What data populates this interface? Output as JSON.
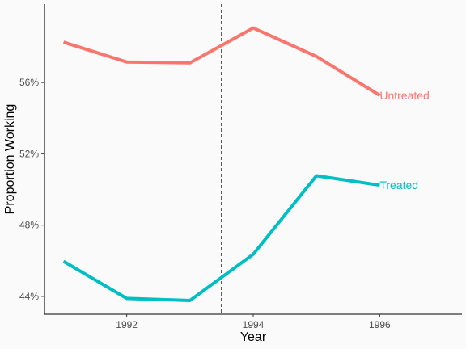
{
  "chart_data": {
    "type": "line",
    "title": "",
    "xlabel": "Year",
    "ylabel": "Proportion Working",
    "xlim": [
      1990.7,
      1997.3
    ],
    "ylim": [
      0.43,
      0.604
    ],
    "x_ticks": [
      1992,
      1994,
      1996
    ],
    "x_tick_labels": [
      "1992",
      "1994",
      "1996"
    ],
    "y_ticks": [
      0.44,
      0.48,
      0.52,
      0.56
    ],
    "y_tick_labels": [
      "44%",
      "48%",
      "52%",
      "56%"
    ],
    "grid": false,
    "legend": "none",
    "reference_line": {
      "x": 1993.5,
      "style": "dashed"
    },
    "series": [
      {
        "name": "Untreated",
        "color": "#F8766D",
        "x": [
          1991,
          1992,
          1993,
          1994,
          1995,
          1996
        ],
        "values": [
          0.5826,
          0.5715,
          0.571,
          0.5906,
          0.5746,
          0.5528
        ]
      },
      {
        "name": "Treated",
        "color": "#00BFC4",
        "x": [
          1991,
          1992,
          1993,
          1994,
          1995,
          1996
        ],
        "values": [
          0.4597,
          0.4389,
          0.4377,
          0.4636,
          0.5077,
          0.5024
        ]
      }
    ]
  }
}
